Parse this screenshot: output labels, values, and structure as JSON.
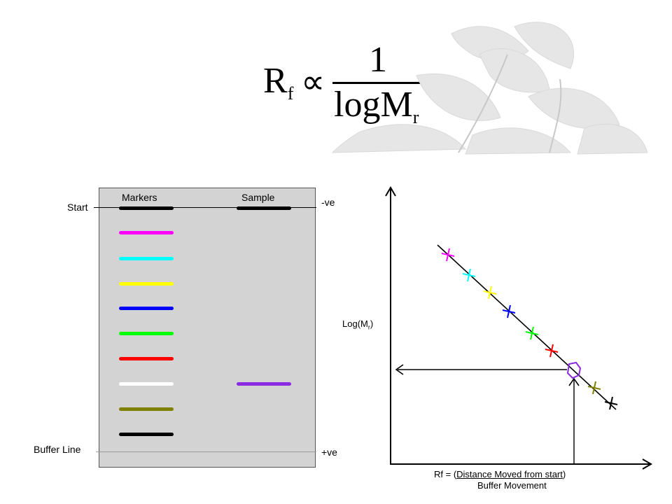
{
  "formula": {
    "lhs": "R",
    "lhs_sub": "f",
    "operator": "∝",
    "numerator": "1",
    "denominator": "logM",
    "denominator_sub": "r"
  },
  "watermark": {
    "icon": "plant-leaf-watermark"
  },
  "gel": {
    "col_markers": "Markers",
    "col_sample": "Sample",
    "start_label": "Start",
    "buffer_label": "Buffer Line",
    "neg_label": "-ve",
    "pos_label": "+ve",
    "background": "#d3d3d3",
    "marker_colors": [
      "#000000",
      "#ff00ff",
      "#00ffff",
      "#ffff00",
      "#0000ff",
      "#00ff00",
      "#ff0000",
      "#ffffff",
      "#808000",
      "#000000"
    ],
    "sample_colors": [
      "#000000",
      "#8a2be2"
    ]
  },
  "plot": {
    "ylabel_main": "Log(M",
    "ylabel_sub": "r",
    "ylabel_close": ")",
    "xlabel_prefix": "Rf = (",
    "xlabel_numerator": "Distance Moved from start",
    "xlabel_close": ")",
    "xlabel_denominator": "Buffer Movement",
    "point_colors": [
      "#ff00ff",
      "#00ffff",
      "#ffff00",
      "#0000ff",
      "#00ff00",
      "#ff0000",
      "#808000",
      "#000000"
    ],
    "sample_color": "#8a2be2"
  }
}
